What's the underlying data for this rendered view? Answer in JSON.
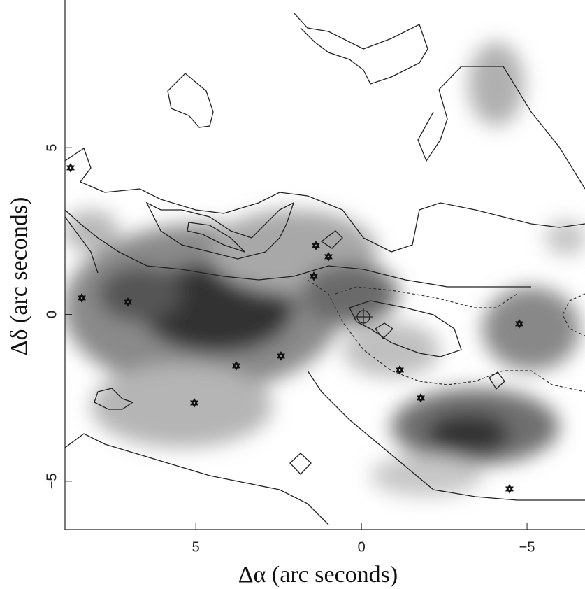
{
  "chart_data": {
    "type": "image",
    "xlabel": "Δα (arc seconds)",
    "ylabel": "Δδ (arc seconds)",
    "xlim": [
      8.95,
      -6.75
    ],
    "ylim": [
      -6.45,
      9.43
    ],
    "xticks": [
      5,
      0,
      {
        "value": -5,
        "label": "−5"
      }
    ],
    "yticks": [
      5,
      0,
      {
        "value": -5,
        "label": "−5"
      }
    ]
  }
}
